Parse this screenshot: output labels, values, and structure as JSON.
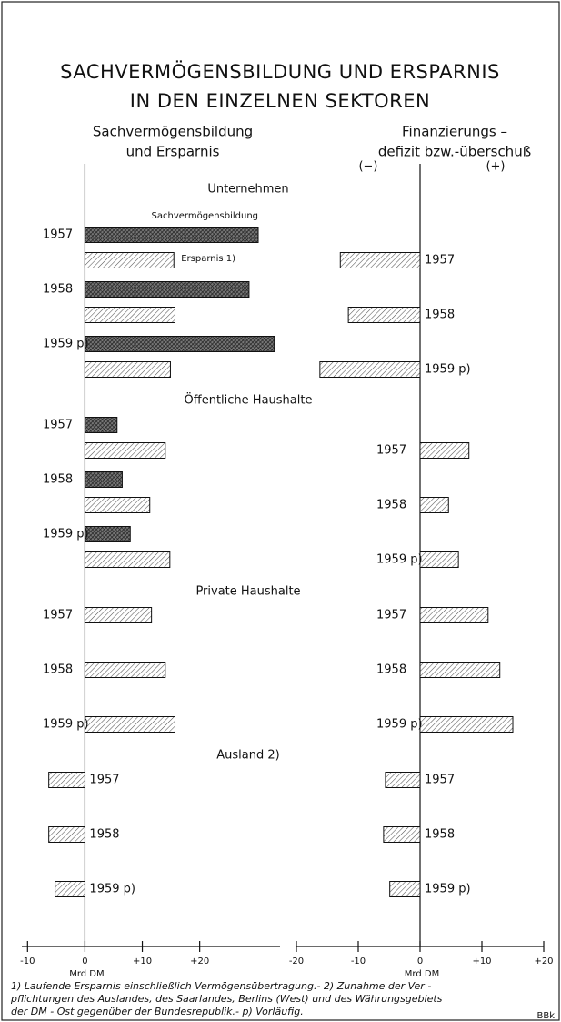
{
  "title": [
    "SACHVERMÖGENSBILDUNG UND ERSPARNIS",
    "IN DEN EINZELNEN SEKTOREN"
  ],
  "chart_data": [
    {
      "type": "hbar",
      "title": [
        "Sachvermögensbildung",
        "und Ersparnis"
      ],
      "xlabel": "Mrd DM",
      "xlim": [
        -11,
        34
      ],
      "xticks": [
        -10,
        0,
        {
          "value": 10,
          "label": "+10"
        },
        {
          "value": 20,
          "label": "+20"
        }
      ],
      "categories": [
        "1957",
        "1958",
        "1959 p)"
      ],
      "sectors": [
        {
          "name": "Unternehmen",
          "series": [
            {
              "name": "Sachvermögensbildung",
              "color": "#222222",
              "pattern": "crosshatch",
              "values": [
                30.2,
                28.6,
                33.0
              ]
            },
            {
              "name": "Ersparnis 1)",
              "color": "#555555",
              "pattern": "hatch",
              "values": [
                15.5,
                15.7,
                14.9
              ]
            }
          ]
        },
        {
          "name": "Öffentliche Haushalte",
          "series": [
            {
              "color": "#222222",
              "pattern": "crosshatch",
              "values": [
                5.6,
                6.5,
                7.9
              ]
            },
            {
              "color": "#555555",
              "pattern": "hatch",
              "values": [
                14.0,
                11.3,
                14.8
              ]
            }
          ]
        },
        {
          "name": "Private Haushalte",
          "series": [
            {
              "color": "#555555",
              "pattern": "hatch",
              "values": [
                11.6,
                14.0,
                15.7
              ]
            }
          ]
        },
        {
          "name": "Ausland 2)",
          "series": [
            {
              "color": "#555555",
              "pattern": "hatch",
              "values": [
                -6.3,
                -6.3,
                -5.2
              ]
            }
          ]
        }
      ]
    },
    {
      "type": "hbar",
      "title": [
        "Finanzierungs –",
        "defizit bzw.-überschuß"
      ],
      "neg_label": "(−)",
      "pos_label": "(+)",
      "xlabel": "Mrd DM",
      "xlim": [
        -20,
        20
      ],
      "xticks": [
        -20,
        -10,
        0,
        {
          "value": 10,
          "label": "+10"
        },
        {
          "value": 20,
          "label": "+20"
        }
      ],
      "categories": [
        "1957",
        "1958",
        "1959 p)"
      ],
      "sectors": [
        {
          "series": [
            {
              "color": "#555555",
              "pattern": "hatch",
              "values": [
                -12.9,
                -11.6,
                -16.2
              ]
            }
          ]
        },
        {
          "series": [
            {
              "color": "#555555",
              "pattern": "hatch",
              "values": [
                7.9,
                4.6,
                6.2
              ]
            }
          ]
        },
        {
          "series": [
            {
              "color": "#555555",
              "pattern": "hatch",
              "values": [
                11.0,
                12.9,
                15.0
              ]
            }
          ]
        },
        {
          "series": [
            {
              "color": "#555555",
              "pattern": "hatch",
              "values": [
                -5.6,
                -5.9,
                -4.9
              ]
            }
          ]
        }
      ]
    }
  ],
  "footnote": [
    "1) Laufende Ersparnis einschließlich Vermögensübertragung.- 2) Zunahme der Ver -",
    "pflichtungen des Auslandes, des Saarlandes, Berlins (West) und des Währungsgebiets",
    "der DM - Ost gegenüber der Bundesrepublik.- p) Vorläufig."
  ],
  "source": "BBk"
}
